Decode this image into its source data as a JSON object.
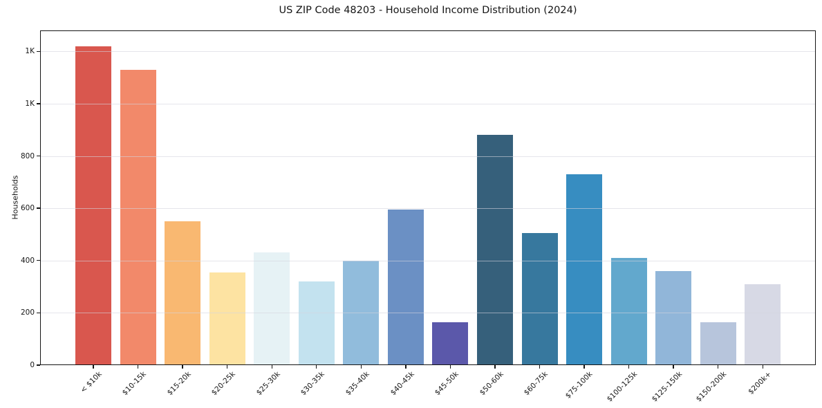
{
  "chart_data": {
    "type": "bar",
    "title": "US ZIP Code 48203 - Household Income Distribution (2024)",
    "xlabel": "",
    "ylabel": "Households",
    "categories": [
      "< $10k",
      "$10-15k",
      "$15-20k",
      "$20-25k",
      "$25-30k",
      "$30-35k",
      "$35-40k",
      "$40-45k",
      "$45-50k",
      "$50-60k",
      "$60-75k",
      "$75-100k",
      "$100-125k",
      "$125-150k",
      "$150-200k",
      "$200k+"
    ],
    "values": [
      1220,
      1130,
      550,
      355,
      430,
      320,
      400,
      595,
      165,
      880,
      505,
      730,
      410,
      360,
      165,
      310
    ],
    "bar_colors": [
      "#d9574e",
      "#f2896a",
      "#f9b871",
      "#fde3a2",
      "#e6f2f5",
      "#c3e2ef",
      "#91bcdc",
      "#6b90c4",
      "#5b58aa",
      "#36607b",
      "#37789e",
      "#378dc1",
      "#62a8cd",
      "#91b6d9",
      "#b7c5dc",
      "#d7d9e5"
    ],
    "ylim": [
      0,
      1280
    ],
    "yticks": {
      "values": [
        0,
        200,
        400,
        600,
        800,
        1000,
        1200
      ],
      "labels": [
        "0",
        "200",
        "400",
        "600",
        "800",
        "1K",
        "1K"
      ]
    },
    "grid": "horizontal-only",
    "legend": "none",
    "colors": {
      "spine": "#141414",
      "grid": "#e6e6ec",
      "text": "#151515",
      "background": "#ffffff"
    }
  }
}
